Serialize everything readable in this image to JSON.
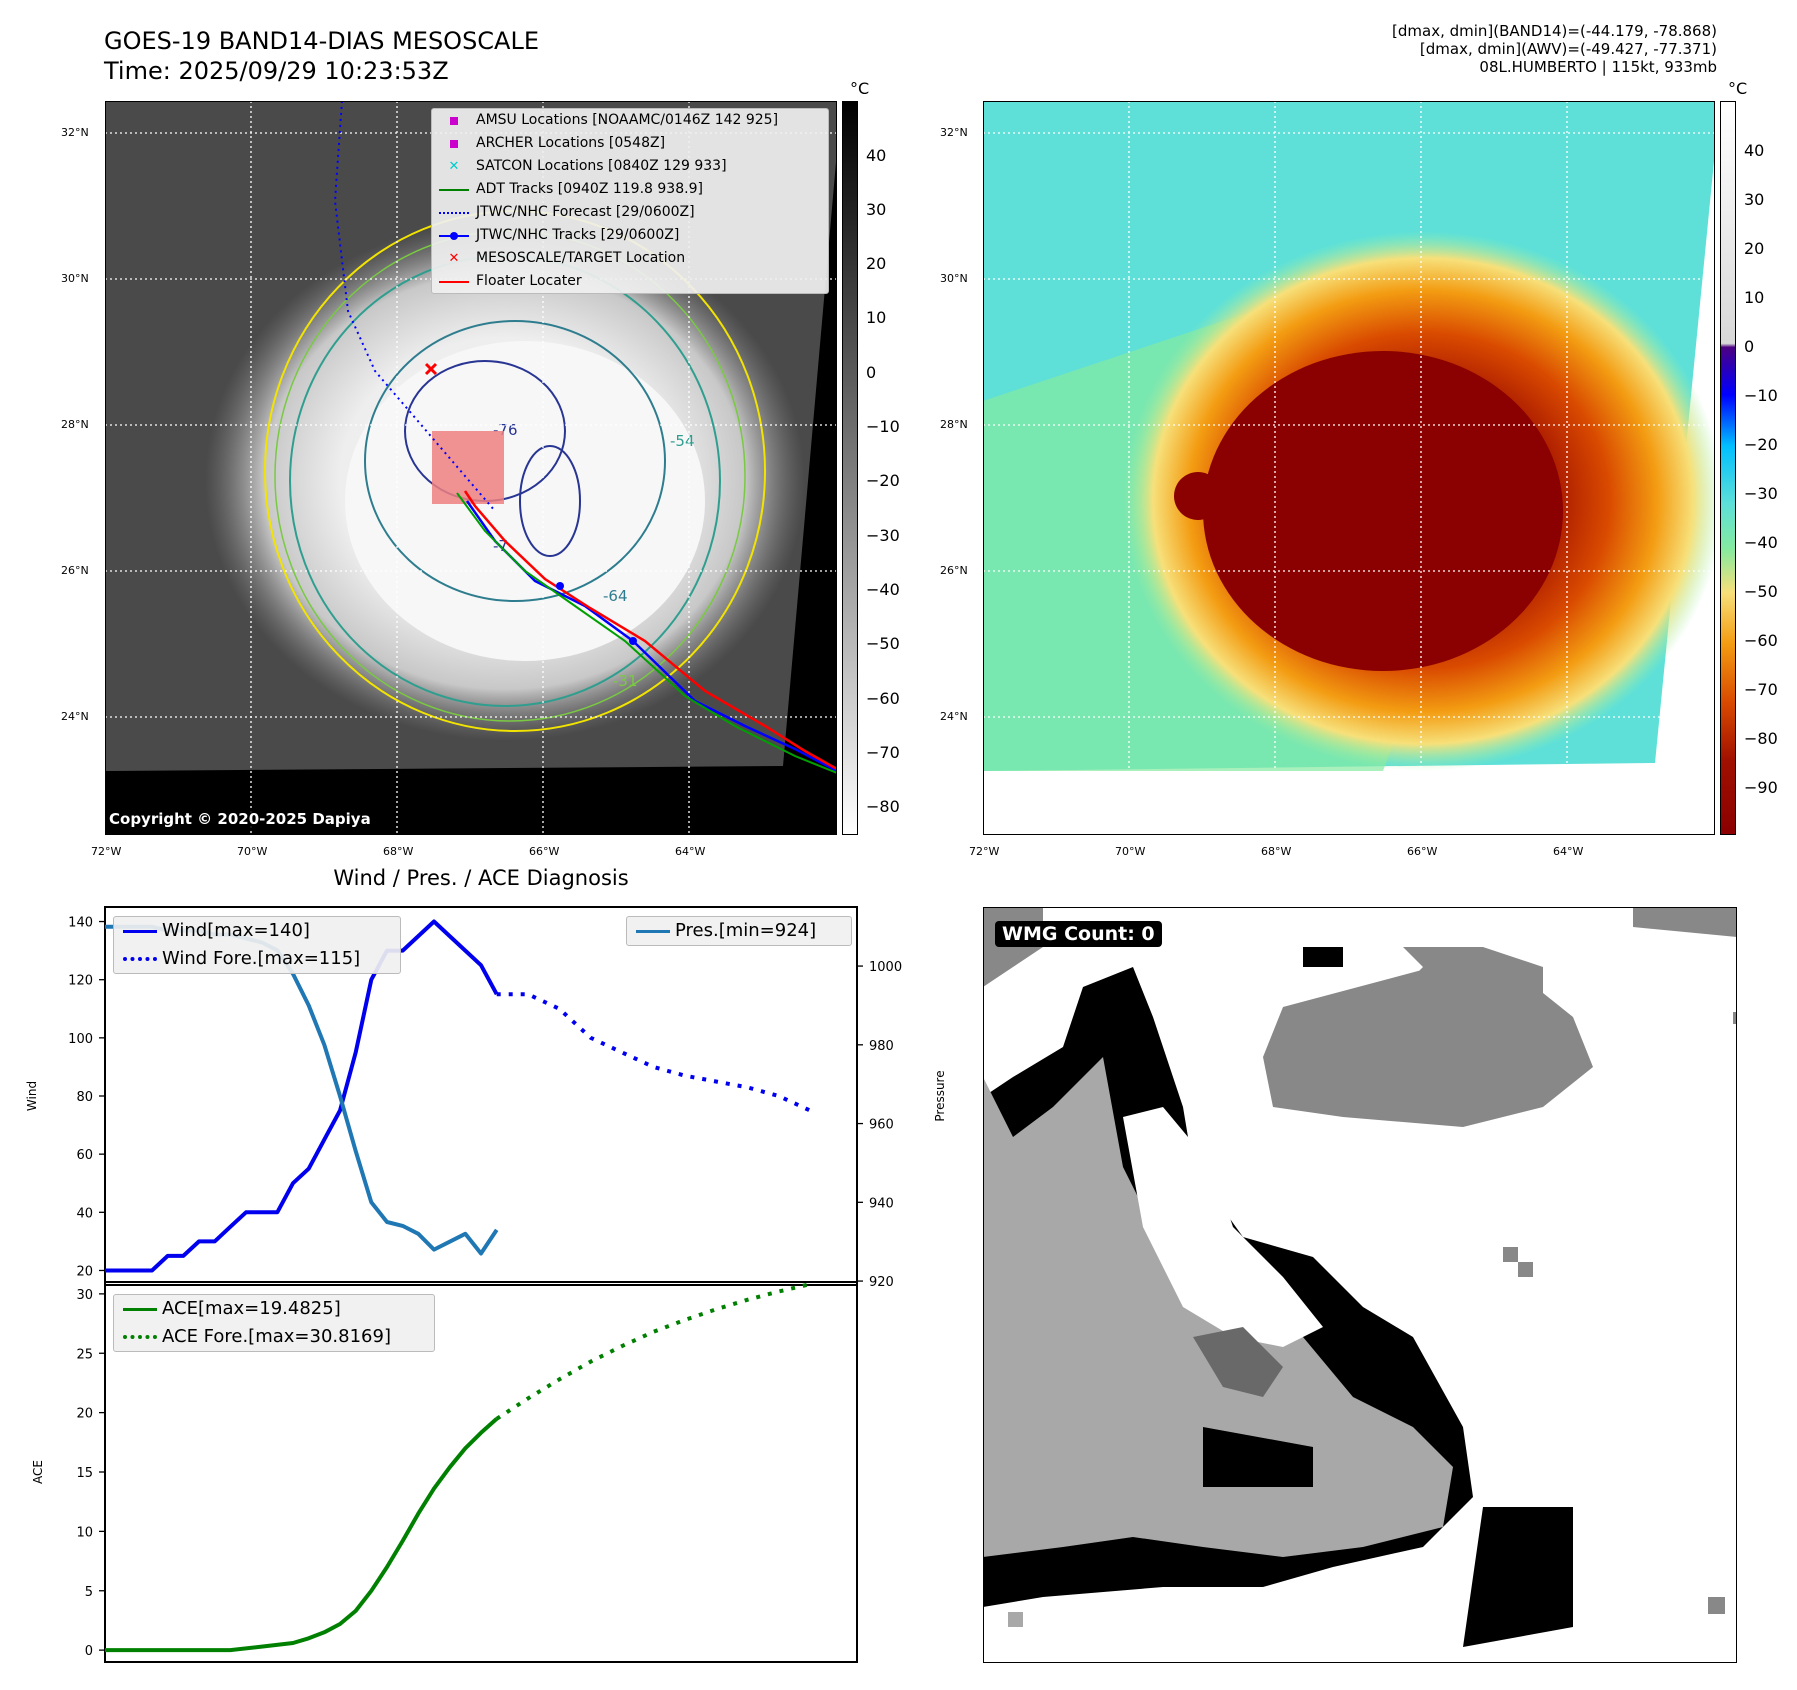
{
  "header": {
    "title_line1": "GOES-19 BAND14-DIAS MESOSCALE",
    "title_line2": "Time: 2025/09/29 10:23:53Z",
    "info_line1": "[dmax, dmin](BAND14)=(-44.179, -78.868)",
    "info_line2": "[dmax, dmin](AWV)=(-49.427, -77.371)",
    "info_line3": "08L.HUMBERTO | 115kt, 933mb"
  },
  "colors": {
    "wind": "#0000ee",
    "pressure": "#1f77b4",
    "ace": "#008000",
    "adt": "#008000",
    "forecast": "#0000ff",
    "track": "#0000ff",
    "floater": "#ff0000",
    "amsu": "#cc00cc",
    "satcon": "#00cccc"
  },
  "map_panels": {
    "lat_labels": [
      "32°N",
      "30°N",
      "28°N",
      "26°N",
      "24°N"
    ],
    "lon_labels": [
      "72°W",
      "70°W",
      "68°W",
      "66°W",
      "64°W"
    ],
    "left_colorbar_unit": "°C",
    "left_colorbar_ticks": [
      "40",
      "30",
      "20",
      "10",
      "0",
      "−10",
      "−20",
      "−30",
      "−40",
      "−50",
      "−60",
      "−70",
      "−80"
    ],
    "right_colorbar_unit": "°C",
    "right_colorbar_ticks": [
      "40",
      "30",
      "20",
      "10",
      "0",
      "−10",
      "−20",
      "−30",
      "−40",
      "−50",
      "−60",
      "−70",
      "−80",
      "−90"
    ],
    "contour_labels": [
      "-76",
      "-64",
      "-31",
      "-54",
      "-7"
    ],
    "copyright": "Copyright © 2020-2025 Dapiya",
    "legend": [
      {
        "label": "AMSU Locations [NOAAMC/0146Z 142 925]",
        "icon": "square-marker"
      },
      {
        "label": "ARCHER Locations [0548Z]",
        "icon": "square-marker"
      },
      {
        "label": "SATCON Locations [0840Z 129 933]",
        "icon": "x-marker"
      },
      {
        "label": "ADT Tracks [0940Z 119.8 938.9]",
        "icon": "solid-line"
      },
      {
        "label": "JTWC/NHC Forecast [29/0600Z]",
        "icon": "dotted-line"
      },
      {
        "label": "JTWC/NHC Tracks [29/0600Z]",
        "icon": "line-dot"
      },
      {
        "label": "MESOSCALE/TARGET Location",
        "icon": "x-marker"
      },
      {
        "label": "Floater Locater",
        "icon": "solid-line"
      }
    ]
  },
  "wmg": {
    "label": "WMG Count: 0"
  },
  "chart_data": [
    {
      "type": "line",
      "title": "Wind / Pres. / ACE Diagnosis",
      "ylabel": "Wind",
      "y2label": "Pressure",
      "ylim": [
        15,
        145
      ],
      "y2lim": [
        919,
        1015
      ],
      "yticks": [
        20,
        40,
        60,
        80,
        100,
        120,
        140
      ],
      "y2ticks": [
        920,
        940,
        960,
        980,
        1000
      ],
      "x": [
        0,
        1,
        2,
        3,
        4,
        5,
        6,
        7,
        8,
        9,
        10,
        11,
        12,
        13,
        14,
        15,
        16,
        17,
        18,
        19,
        20,
        21,
        22,
        23,
        24,
        25,
        26,
        27,
        28,
        29,
        30,
        31,
        32,
        33,
        34,
        35,
        36,
        37,
        38,
        39,
        40,
        41,
        42,
        43,
        44,
        45,
        46,
        47,
        48
      ],
      "series": [
        {
          "name": "Wind[max=140]",
          "axis": "left",
          "style": "solid",
          "x": [
            0,
            1,
            2,
            3,
            4,
            5,
            6,
            7,
            8,
            9,
            10,
            11,
            12,
            13,
            14,
            15,
            16,
            17,
            18,
            19,
            20,
            21,
            22,
            23,
            24,
            25
          ],
          "values": [
            20,
            20,
            20,
            20,
            25,
            25,
            30,
            30,
            35,
            40,
            40,
            40,
            50,
            55,
            65,
            75,
            95,
            120,
            130,
            130,
            135,
            140,
            135,
            130,
            125,
            115
          ]
        },
        {
          "name": "Wind Fore.[max=115]",
          "axis": "left",
          "style": "dotted",
          "x": [
            25,
            27,
            29,
            31,
            33,
            35,
            37,
            39,
            41,
            43,
            45
          ],
          "values": [
            115,
            115,
            110,
            100,
            95,
            90,
            87,
            85,
            83,
            80,
            75
          ]
        },
        {
          "name": "Pres.[min=924]",
          "axis": "right",
          "style": "solid",
          "x": [
            0,
            1,
            2,
            3,
            4,
            5,
            6,
            7,
            8,
            9,
            10,
            11,
            12,
            13,
            14,
            15,
            16,
            17,
            18,
            19,
            20,
            21,
            22,
            23,
            24,
            25
          ],
          "values": [
            1010,
            1010,
            1010,
            1010,
            1009,
            1009,
            1009,
            1008,
            1008,
            1007,
            1006,
            1004,
            998,
            990,
            980,
            967,
            953,
            940,
            935,
            934,
            932,
            928,
            930,
            932,
            927,
            933
          ]
        }
      ]
    },
    {
      "type": "line",
      "ylabel": "ACE",
      "ylim": [
        -1,
        31
      ],
      "yticks": [
        0,
        5,
        10,
        15,
        20,
        25,
        30
      ],
      "series": [
        {
          "name": "ACE[max=19.4825]",
          "style": "solid",
          "x": [
            0,
            2,
            4,
            6,
            8,
            10,
            12,
            13,
            14,
            15,
            16,
            17,
            18,
            19,
            20,
            21,
            22,
            23,
            24,
            25
          ],
          "values": [
            0,
            0,
            0,
            0,
            0,
            0.3,
            0.6,
            1.0,
            1.5,
            2.2,
            3.3,
            5.0,
            7.0,
            9.2,
            11.5,
            13.6,
            15.4,
            17.0,
            18.3,
            19.4825
          ]
        },
        {
          "name": "ACE Fore.[max=30.8169]",
          "style": "dotted",
          "x": [
            25,
            27,
            29,
            31,
            33,
            35,
            37,
            39,
            41,
            43,
            45
          ],
          "values": [
            19.4825,
            21.2,
            22.8,
            24.3,
            25.6,
            26.8,
            27.8,
            28.7,
            29.5,
            30.2,
            30.8169
          ]
        }
      ]
    }
  ]
}
